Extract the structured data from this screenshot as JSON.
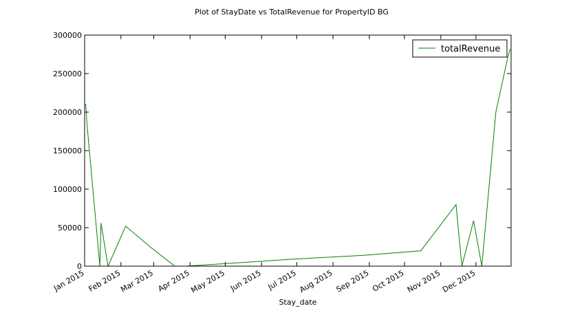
{
  "chart_data": {
    "type": "line",
    "title": "Plot of StayDate vs TotalRevenue for PropertyID BG",
    "xlabel": "Stay_date",
    "ylabel": "",
    "x_tick_labels": [
      "Jan 2015",
      "Feb 2015",
      "Mar 2015",
      "Apr 2015",
      "May 2015",
      "Jun 2015",
      "Jul 2015",
      "Aug 2015",
      "Sep 2015",
      "Oct 2015",
      "Nov 2015",
      "Dec 2015"
    ],
    "y_tick_labels": [
      "0",
      "50000",
      "100000",
      "150000",
      "200000",
      "250000",
      "300000"
    ],
    "ylim": [
      0,
      300000
    ],
    "xlim": [
      "2015-01-01",
      "2015-12-31"
    ],
    "grid": false,
    "legend": {
      "position": "top-right",
      "entries": [
        "totalRevenue"
      ]
    },
    "series": [
      {
        "name": "totalRevenue",
        "color": "#008000",
        "points": [
          {
            "x": "2015-01-01",
            "y": 210000
          },
          {
            "x": "2015-01-02",
            "y": 210000
          },
          {
            "x": "2015-01-03",
            "y": 185000
          },
          {
            "x": "2015-01-14",
            "y": 0
          },
          {
            "x": "2015-01-15",
            "y": 56000
          },
          {
            "x": "2015-01-21",
            "y": 0
          },
          {
            "x": "2015-02-05",
            "y": 52000
          },
          {
            "x": "2015-02-26",
            "y": 25000
          },
          {
            "x": "2015-03-19",
            "y": 0
          },
          {
            "x": "2015-03-28",
            "y": 0
          },
          {
            "x": "2015-04-28",
            "y": 3000
          },
          {
            "x": "2015-06-27",
            "y": 9000
          },
          {
            "x": "2015-08-26",
            "y": 14000
          },
          {
            "x": "2015-10-15",
            "y": 20000
          },
          {
            "x": "2015-11-14",
            "y": 80000
          },
          {
            "x": "2015-11-19",
            "y": 0
          },
          {
            "x": "2015-11-29",
            "y": 59000
          },
          {
            "x": "2015-12-06",
            "y": 0
          },
          {
            "x": "2015-12-18",
            "y": 200000
          },
          {
            "x": "2015-12-28",
            "y": 270000
          },
          {
            "x": "2015-12-30",
            "y": 281000
          },
          {
            "x": "2015-12-31",
            "y": 281000
          }
        ]
      }
    ]
  }
}
